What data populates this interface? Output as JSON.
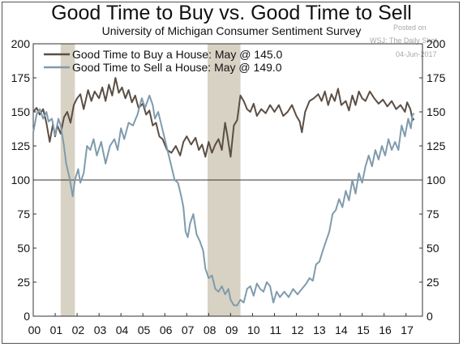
{
  "chart_data": {
    "type": "line",
    "title": "Good Time to Buy vs. Good Time to Sell",
    "subtitle": "University of Michigan Consumer Sentiment Survey",
    "xlabel": "",
    "ylabel": "",
    "x_ticks": [
      "00",
      "01",
      "02",
      "03",
      "04",
      "05",
      "06",
      "07",
      "08",
      "09",
      "10",
      "11",
      "12",
      "13",
      "14",
      "15",
      "16",
      "17"
    ],
    "xlim": [
      2000,
      2017.75
    ],
    "ylim": [
      0,
      200
    ],
    "y_ticks": [
      0,
      25,
      50,
      75,
      100,
      125,
      150,
      175,
      200
    ],
    "reference_line": 100,
    "recessions": [
      [
        2001.25,
        2001.9
      ],
      [
        2007.95,
        2009.45
      ]
    ],
    "legend_position": "top-left",
    "series": [
      {
        "name": "Good Time to Buy a House: May @ 145.0",
        "color": "#5b4e44",
        "points": [
          [
            2000.0,
            150
          ],
          [
            2000.15,
            153
          ],
          [
            2000.3,
            148
          ],
          [
            2000.45,
            152
          ],
          [
            2000.6,
            142
          ],
          [
            2000.75,
            128
          ],
          [
            2000.9,
            141
          ],
          [
            2001.0,
            132
          ],
          [
            2001.1,
            140
          ],
          [
            2001.25,
            134
          ],
          [
            2001.4,
            146
          ],
          [
            2001.55,
            150
          ],
          [
            2001.7,
            142
          ],
          [
            2001.85,
            155
          ],
          [
            2002.0,
            160
          ],
          [
            2002.15,
            163
          ],
          [
            2002.3,
            152
          ],
          [
            2002.5,
            166
          ],
          [
            2002.65,
            158
          ],
          [
            2002.8,
            165
          ],
          [
            2003.0,
            160
          ],
          [
            2003.15,
            168
          ],
          [
            2003.3,
            158
          ],
          [
            2003.45,
            170
          ],
          [
            2003.6,
            162
          ],
          [
            2003.75,
            175
          ],
          [
            2003.9,
            164
          ],
          [
            2004.05,
            168
          ],
          [
            2004.2,
            160
          ],
          [
            2004.35,
            166
          ],
          [
            2004.5,
            157
          ],
          [
            2004.65,
            162
          ],
          [
            2004.8,
            153
          ],
          [
            2005.0,
            156
          ],
          [
            2005.15,
            148
          ],
          [
            2005.3,
            151
          ],
          [
            2005.45,
            140
          ],
          [
            2005.6,
            142
          ],
          [
            2005.75,
            132
          ],
          [
            2005.9,
            130
          ],
          [
            2006.1,
            122
          ],
          [
            2006.3,
            120
          ],
          [
            2006.5,
            125
          ],
          [
            2006.7,
            118
          ],
          [
            2006.85,
            128
          ],
          [
            2007.0,
            132
          ],
          [
            2007.2,
            126
          ],
          [
            2007.4,
            131
          ],
          [
            2007.55,
            122
          ],
          [
            2007.7,
            126
          ],
          [
            2007.85,
            117
          ],
          [
            2008.0,
            128
          ],
          [
            2008.15,
            120
          ],
          [
            2008.3,
            126
          ],
          [
            2008.45,
            130
          ],
          [
            2008.6,
            122
          ],
          [
            2008.75,
            142
          ],
          [
            2008.85,
            133
          ],
          [
            2009.0,
            117
          ],
          [
            2009.15,
            140
          ],
          [
            2009.3,
            144
          ],
          [
            2009.45,
            162
          ],
          [
            2009.6,
            158
          ],
          [
            2009.75,
            152
          ],
          [
            2009.9,
            150
          ],
          [
            2010.05,
            156
          ],
          [
            2010.2,
            147
          ],
          [
            2010.4,
            152
          ],
          [
            2010.6,
            149
          ],
          [
            2010.8,
            155
          ],
          [
            2011.0,
            150
          ],
          [
            2011.2,
            155
          ],
          [
            2011.4,
            147
          ],
          [
            2011.6,
            150
          ],
          [
            2011.8,
            155
          ],
          [
            2012.0,
            147
          ],
          [
            2012.15,
            143
          ],
          [
            2012.25,
            135
          ],
          [
            2012.4,
            150
          ],
          [
            2012.6,
            158
          ],
          [
            2012.8,
            160
          ],
          [
            2013.0,
            163
          ],
          [
            2013.15,
            158
          ],
          [
            2013.3,
            165
          ],
          [
            2013.45,
            155
          ],
          [
            2013.6,
            163
          ],
          [
            2013.75,
            158
          ],
          [
            2013.9,
            167
          ],
          [
            2014.05,
            155
          ],
          [
            2014.25,
            158
          ],
          [
            2014.4,
            151
          ],
          [
            2014.55,
            162
          ],
          [
            2014.7,
            155
          ],
          [
            2014.85,
            165
          ],
          [
            2015.0,
            160
          ],
          [
            2015.15,
            158
          ],
          [
            2015.35,
            165
          ],
          [
            2015.55,
            160
          ],
          [
            2015.75,
            156
          ],
          [
            2015.95,
            159
          ],
          [
            2016.15,
            154
          ],
          [
            2016.35,
            158
          ],
          [
            2016.55,
            152
          ],
          [
            2016.75,
            155
          ],
          [
            2016.95,
            150
          ],
          [
            2017.05,
            157
          ],
          [
            2017.2,
            152
          ],
          [
            2017.3,
            144
          ],
          [
            2017.37,
            145
          ]
        ]
      },
      {
        "name": "Good Time to Sell a House: May @ 149.0",
        "color": "#7f9bad",
        "points": [
          [
            2000.0,
            135
          ],
          [
            2000.15,
            148
          ],
          [
            2000.3,
            152
          ],
          [
            2000.45,
            145
          ],
          [
            2000.6,
            150
          ],
          [
            2000.7,
            143
          ],
          [
            2000.85,
            145
          ],
          [
            2001.0,
            133
          ],
          [
            2001.15,
            145
          ],
          [
            2001.25,
            140
          ],
          [
            2001.4,
            125
          ],
          [
            2001.5,
            112
          ],
          [
            2001.65,
            102
          ],
          [
            2001.8,
            88
          ],
          [
            2001.9,
            100
          ],
          [
            2002.05,
            108
          ],
          [
            2002.15,
            98
          ],
          [
            2002.3,
            105
          ],
          [
            2002.45,
            125
          ],
          [
            2002.6,
            122
          ],
          [
            2002.75,
            130
          ],
          [
            2002.9,
            118
          ],
          [
            2003.1,
            128
          ],
          [
            2003.3,
            112
          ],
          [
            2003.5,
            125
          ],
          [
            2003.7,
            130
          ],
          [
            2003.85,
            122
          ],
          [
            2004.0,
            138
          ],
          [
            2004.15,
            130
          ],
          [
            2004.35,
            142
          ],
          [
            2004.55,
            140
          ],
          [
            2004.75,
            148
          ],
          [
            2004.95,
            160
          ],
          [
            2005.1,
            153
          ],
          [
            2005.3,
            162
          ],
          [
            2005.45,
            155
          ],
          [
            2005.55,
            145
          ],
          [
            2005.7,
            150
          ],
          [
            2005.85,
            140
          ],
          [
            2006.0,
            130
          ],
          [
            2006.15,
            120
          ],
          [
            2006.3,
            110
          ],
          [
            2006.45,
            100
          ],
          [
            2006.6,
            98
          ],
          [
            2006.75,
            88
          ],
          [
            2006.85,
            80
          ],
          [
            2006.95,
            62
          ],
          [
            2007.05,
            58
          ],
          [
            2007.15,
            68
          ],
          [
            2007.3,
            75
          ],
          [
            2007.45,
            60
          ],
          [
            2007.6,
            55
          ],
          [
            2007.75,
            48
          ],
          [
            2007.85,
            35
          ],
          [
            2008.0,
            28
          ],
          [
            2008.15,
            30
          ],
          [
            2008.3,
            20
          ],
          [
            2008.45,
            18
          ],
          [
            2008.6,
            22
          ],
          [
            2008.75,
            16
          ],
          [
            2008.9,
            20
          ],
          [
            2009.0,
            12
          ],
          [
            2009.15,
            8
          ],
          [
            2009.3,
            8
          ],
          [
            2009.45,
            12
          ],
          [
            2009.6,
            10
          ],
          [
            2009.75,
            20
          ],
          [
            2009.9,
            22
          ],
          [
            2010.05,
            15
          ],
          [
            2010.2,
            24
          ],
          [
            2010.35,
            20
          ],
          [
            2010.5,
            18
          ],
          [
            2010.65,
            25
          ],
          [
            2010.8,
            22
          ],
          [
            2010.95,
            10
          ],
          [
            2011.1,
            18
          ],
          [
            2011.25,
            14
          ],
          [
            2011.45,
            18
          ],
          [
            2011.65,
            14
          ],
          [
            2011.85,
            20
          ],
          [
            2012.05,
            16
          ],
          [
            2012.25,
            20
          ],
          [
            2012.45,
            24
          ],
          [
            2012.6,
            28
          ],
          [
            2012.75,
            26
          ],
          [
            2012.9,
            38
          ],
          [
            2013.05,
            40
          ],
          [
            2013.2,
            48
          ],
          [
            2013.35,
            55
          ],
          [
            2013.5,
            62
          ],
          [
            2013.65,
            75
          ],
          [
            2013.8,
            78
          ],
          [
            2013.95,
            86
          ],
          [
            2014.1,
            80
          ],
          [
            2014.25,
            92
          ],
          [
            2014.4,
            85
          ],
          [
            2014.55,
            100
          ],
          [
            2014.7,
            90
          ],
          [
            2014.85,
            105
          ],
          [
            2015.0,
            98
          ],
          [
            2015.15,
            110
          ],
          [
            2015.3,
            118
          ],
          [
            2015.45,
            110
          ],
          [
            2015.6,
            122
          ],
          [
            2015.75,
            115
          ],
          [
            2015.9,
            125
          ],
          [
            2016.05,
            118
          ],
          [
            2016.2,
            130
          ],
          [
            2016.35,
            122
          ],
          [
            2016.5,
            128
          ],
          [
            2016.65,
            122
          ],
          [
            2016.8,
            140
          ],
          [
            2016.95,
            132
          ],
          [
            2017.1,
            145
          ],
          [
            2017.22,
            138
          ],
          [
            2017.3,
            148
          ],
          [
            2017.37,
            149
          ]
        ]
      }
    ]
  },
  "watermark": {
    "line1": "Posted on",
    "line2": "WSJ: The Daily Shot",
    "line3": "04-Jun-2017"
  }
}
